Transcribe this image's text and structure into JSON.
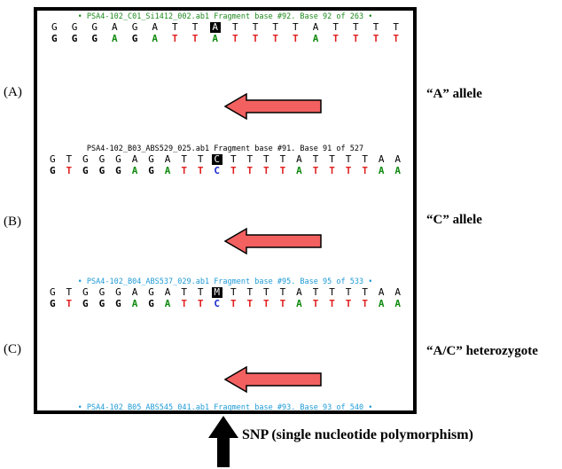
{
  "panels": [
    {
      "id": "A",
      "side_label": "(A)",
      "allele_label": "“A” allele",
      "header": "• PSA4-102_C01_Si1412_002.ab1 Fragment base #92. Base 92 of 263 •",
      "header_style": "green",
      "called_bases": [
        "G",
        "G",
        "G",
        "A",
        "G",
        "A",
        "T",
        "T",
        "A",
        "T",
        "T",
        "T",
        "T",
        "A",
        "T",
        "T",
        "T",
        "T"
      ],
      "colored_bases": [
        "G",
        "G",
        "G",
        "A",
        "G",
        "A",
        "T",
        "T",
        "A",
        "T",
        "T",
        "T",
        "T",
        "A",
        "T",
        "T",
        "T",
        "T"
      ],
      "snp_index": 8,
      "peaks": [
        {
          "base": "G",
          "h": 0.62
        },
        {
          "base": "G",
          "h": 0.62
        },
        {
          "base": "G",
          "h": 0.55
        },
        {
          "base": "A",
          "h": 0.65
        },
        {
          "base": "G",
          "h": 0.3
        },
        {
          "base": "A",
          "h": 0.82
        },
        {
          "base": "T",
          "h": 0.35
        },
        {
          "base": "T",
          "h": 0.22
        },
        {
          "base": "A",
          "h": 0.46
        },
        {
          "base": "T",
          "h": 0.58
        },
        {
          "base": "T",
          "h": 0.46
        },
        {
          "base": "T",
          "h": 0.58
        },
        {
          "base": "T",
          "h": 0.48
        },
        {
          "base": "A",
          "h": 0.5
        },
        {
          "base": "T",
          "h": 0.65
        },
        {
          "base": "T",
          "h": 0.52
        },
        {
          "base": "T",
          "h": 0.68
        },
        {
          "base": "T",
          "h": 0.64
        }
      ]
    },
    {
      "id": "B",
      "side_label": "(B)",
      "allele_label": "“C” allele",
      "header": "PSA4-102_B03_ABS529_025.ab1 Fragment base #91. Base 91 of 527",
      "header_style": "black",
      "called_bases": [
        "G",
        "T",
        "G",
        "G",
        "G",
        "A",
        "G",
        "A",
        "T",
        "T",
        "C",
        "T",
        "T",
        "T",
        "T",
        "A",
        "T",
        "T",
        "T",
        "T",
        "A",
        "A"
      ],
      "colored_bases": [
        "G",
        "T",
        "G",
        "G",
        "G",
        "A",
        "G",
        "A",
        "T",
        "T",
        "C",
        "T",
        "T",
        "T",
        "T",
        "A",
        "T",
        "T",
        "T",
        "T",
        "A",
        "A"
      ],
      "snp_index": 10,
      "peaks": [
        {
          "base": "G",
          "h": 0.85
        },
        {
          "base": "T",
          "h": 0.25
        },
        {
          "base": "G",
          "h": 0.62
        },
        {
          "base": "G",
          "h": 0.6
        },
        {
          "base": "G",
          "h": 0.62
        },
        {
          "base": "A",
          "h": 0.66
        },
        {
          "base": "G",
          "h": 0.55
        },
        {
          "base": "A",
          "h": 0.78
        },
        {
          "base": "T",
          "h": 0.48
        },
        {
          "base": "T",
          "h": 0.3
        },
        {
          "base": "C",
          "h": 0.38
        },
        {
          "base": "T",
          "h": 0.55
        },
        {
          "base": "T",
          "h": 0.52
        },
        {
          "base": "T",
          "h": 0.64
        },
        {
          "base": "T",
          "h": 0.22
        },
        {
          "base": "A",
          "h": 0.34
        },
        {
          "base": "T",
          "h": 0.66
        },
        {
          "base": "T",
          "h": 0.5
        },
        {
          "base": "T",
          "h": 0.66
        },
        {
          "base": "T",
          "h": 0.46
        },
        {
          "base": "A",
          "h": 0.38
        },
        {
          "base": "A",
          "h": 0.38
        }
      ]
    },
    {
      "id": "C",
      "side_label": "(C)",
      "allele_label": "“A/C” heterozygote",
      "header": "• PSA4-102_B04_ABS537_029.ab1 Fragment base #95. Base 95 of 533 •",
      "header_style": "cyan",
      "called_bases": [
        "G",
        "T",
        "G",
        "G",
        "G",
        "A",
        "G",
        "A",
        "T",
        "T",
        "M",
        "T",
        "T",
        "T",
        "T",
        "A",
        "T",
        "T",
        "T",
        "T",
        "A",
        "A"
      ],
      "colored_bases": [
        "G",
        "T",
        "G",
        "G",
        "G",
        "A",
        "G",
        "A",
        "T",
        "T",
        "C",
        "T",
        "T",
        "T",
        "T",
        "A",
        "T",
        "T",
        "T",
        "T",
        "A",
        "A"
      ],
      "snp_index": 10,
      "peaks": [
        {
          "base": "G",
          "h": 0.85
        },
        {
          "base": "T",
          "h": 0.25
        },
        {
          "base": "G",
          "h": 0.62
        },
        {
          "base": "G",
          "h": 0.58
        },
        {
          "base": "G",
          "h": 0.6
        },
        {
          "base": "A",
          "h": 0.66
        },
        {
          "base": "G",
          "h": 0.52
        },
        {
          "base": "A",
          "h": 0.78
        },
        {
          "base": "T",
          "h": 0.48
        },
        {
          "base": "T",
          "h": 0.3
        },
        {
          "base": "C",
          "h": 0.38
        },
        {
          "base": "T",
          "h": 0.55
        },
        {
          "base": "T",
          "h": 0.52
        },
        {
          "base": "T",
          "h": 0.64
        },
        {
          "base": "T",
          "h": 0.22
        },
        {
          "base": "A",
          "h": 0.34
        },
        {
          "base": "T",
          "h": 0.66
        },
        {
          "base": "T",
          "h": 0.5
        },
        {
          "base": "T",
          "h": 0.66
        },
        {
          "base": "T",
          "h": 0.46
        },
        {
          "base": "A",
          "h": 0.38
        },
        {
          "base": "A",
          "h": 0.38
        }
      ]
    }
  ],
  "footer_header": "• PSA4-102_B05_ABS545_041.ab1 Fragment base #93. Base 93 of 540 •",
  "snp_label": "SNP (single nucleotide polymorphism)",
  "colors": {
    "G": "#000000",
    "A": "#0f8a0f",
    "T": "#e02020",
    "C": "#1a2ad0",
    "arrow_fill": "#f26060",
    "arrow_stroke": "#000000"
  }
}
